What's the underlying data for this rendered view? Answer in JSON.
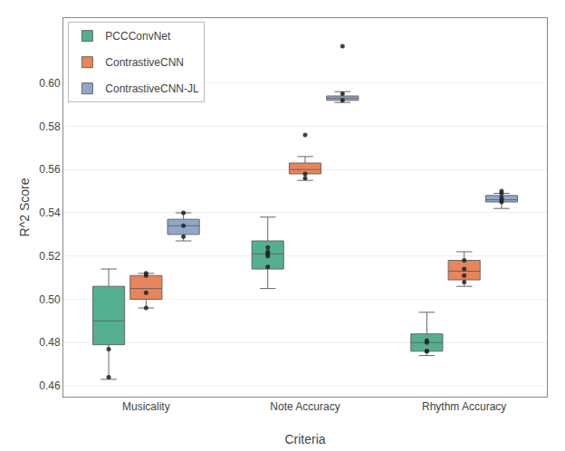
{
  "chart_data": {
    "type": "box",
    "xlabel": "Criteria",
    "ylabel": "R^2 Score",
    "categories": [
      "Musicality",
      "Note Accuracy",
      "Rhythm Accuracy"
    ],
    "series": [
      {
        "name": "PCCConvNet",
        "color": "#52b090",
        "whislo": [
          0.463,
          0.505,
          0.474
        ],
        "q1": [
          0.479,
          0.514,
          0.476
        ],
        "med": [
          0.49,
          0.521,
          0.48
        ],
        "q3": [
          0.506,
          0.527,
          0.484
        ],
        "whishi": [
          0.514,
          0.538,
          0.494
        ],
        "fliers": [
          [
            0.477,
            0.464
          ],
          [
            0.515,
            0.52,
            0.521,
            0.522,
            0.524
          ],
          [
            0.476,
            0.476,
            0.48,
            0.481
          ]
        ]
      },
      {
        "name": "ContrastiveCNN",
        "color": "#e8855a",
        "whislo": [
          0.496,
          0.555,
          0.506
        ],
        "q1": [
          0.5,
          0.558,
          0.509
        ],
        "med": [
          0.505,
          0.56,
          0.513
        ],
        "q3": [
          0.511,
          0.563,
          0.518
        ],
        "whishi": [
          0.512,
          0.566,
          0.522
        ],
        "fliers": [
          [
            0.496,
            0.503,
            0.511,
            0.512
          ],
          [
            0.556,
            0.558,
            0.576
          ],
          [
            0.508,
            0.511,
            0.514,
            0.518
          ]
        ]
      },
      {
        "name": "ContrastiveCNN-JL",
        "color": "#8fa8c8",
        "whislo": [
          0.527,
          0.591,
          0.542
        ],
        "q1": [
          0.53,
          0.592,
          0.545
        ],
        "med": [
          0.534,
          0.593,
          0.546
        ],
        "q3": [
          0.537,
          0.594,
          0.548
        ],
        "whishi": [
          0.54,
          0.596,
          0.549
        ],
        "fliers": [
          [
            0.529,
            0.534,
            0.54
          ],
          [
            0.592,
            0.595,
            0.617
          ],
          [
            0.545,
            0.546,
            0.547,
            0.549,
            0.55
          ]
        ]
      }
    ],
    "ylim": [
      0.455,
      0.63
    ],
    "yticks": [
      0.46,
      0.48,
      {
        "value": 0.5,
        "label": "0.50"
      },
      0.52,
      0.54,
      0.56,
      0.58,
      {
        "value": 0.6,
        "label": "0.60"
      }
    ],
    "grid": true,
    "legend": "upper left"
  }
}
